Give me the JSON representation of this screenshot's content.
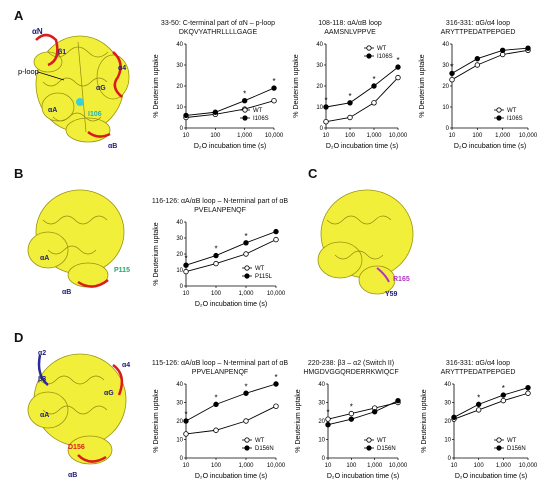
{
  "panels": {
    "A": "A",
    "B": "B",
    "C": "C",
    "D": "D"
  },
  "structures": {
    "A": {
      "labels": [
        "αN",
        "β1",
        "p-loop",
        "α4",
        "αG",
        "αA",
        "I106",
        "αB"
      ]
    },
    "B": {
      "labels": [
        "αA",
        "P115",
        "αB"
      ]
    },
    "C": {
      "labels": [
        "R165",
        "Y59"
      ]
    },
    "D": {
      "labels": [
        "α2",
        "β3",
        "α4",
        "αG",
        "αA",
        "D156",
        "αB"
      ]
    }
  },
  "axis_common": {
    "xlabel": "D₂O incubation time (s)",
    "ylabel": "% Deuterium uptake",
    "xticks": [
      "10",
      "100",
      "1,000",
      "10,000"
    ]
  },
  "colors": {
    "wt_fill": "#ffffff",
    "mutant_fill": "#000000",
    "stroke": "#000000"
  },
  "chart_data": [
    {
      "id": "A1",
      "type": "line",
      "title": "33-50: C-terminal part of αN – p-loop",
      "subtitle": "DKQVYATHRLLLLGAGE",
      "x": [
        10,
        100,
        1000,
        10000
      ],
      "xscale": "log",
      "ylim": [
        0,
        40
      ],
      "yticks": [
        0,
        10,
        20,
        30,
        40
      ],
      "legend": "bottom-right",
      "series": [
        {
          "name": "WT",
          "marker": "open",
          "values": [
            5,
            6.5,
            9,
            13
          ]
        },
        {
          "name": "I106S",
          "marker": "filled",
          "values": [
            6,
            7.5,
            13,
            19
          ]
        }
      ],
      "significance": [
        1000,
        10000
      ]
    },
    {
      "id": "A2",
      "type": "line",
      "title": "108-118: αA/αB loop",
      "subtitle": "AAMSNLVPPVE",
      "x": [
        10,
        100,
        1000,
        10000
      ],
      "xscale": "log",
      "ylim": [
        0,
        40
      ],
      "yticks": [
        0,
        10,
        20,
        30,
        40
      ],
      "legend": "top-right",
      "series": [
        {
          "name": "WT",
          "marker": "open",
          "values": [
            3,
            5,
            12,
            24
          ]
        },
        {
          "name": "I106S",
          "marker": "filled",
          "values": [
            10,
            12,
            20,
            29
          ]
        }
      ],
      "significance": [
        10,
        100,
        1000,
        10000
      ]
    },
    {
      "id": "A3",
      "type": "line",
      "title": "316-331: αG/α4 loop",
      "subtitle": "ARYTTPEDATPEPGED",
      "x": [
        10,
        100,
        1000,
        10000
      ],
      "xscale": "log",
      "ylim": [
        0,
        40
      ],
      "yticks": [
        0,
        10,
        20,
        30,
        40
      ],
      "legend": "bottom-right",
      "series": [
        {
          "name": "WT",
          "marker": "open",
          "values": [
            23,
            30,
            35,
            37
          ]
        },
        {
          "name": "I106S",
          "marker": "filled",
          "values": [
            26,
            33,
            37,
            38
          ]
        }
      ],
      "significance": [
        10
      ]
    },
    {
      "id": "B1",
      "type": "line",
      "title": "116-126: αA/αB loop – N-terminal part of αB",
      "subtitle": "PVELANPENQF",
      "x": [
        10,
        100,
        1000,
        10000
      ],
      "xscale": "log",
      "ylim": [
        0,
        40
      ],
      "yticks": [
        0,
        10,
        20,
        30,
        40
      ],
      "legend": "bottom-right",
      "series": [
        {
          "name": "WT",
          "marker": "open",
          "values": [
            9,
            14,
            20,
            29
          ]
        },
        {
          "name": "P115L",
          "marker": "filled",
          "values": [
            13,
            19,
            27,
            34
          ]
        }
      ],
      "significance": [
        10,
        100,
        1000
      ]
    },
    {
      "id": "D1",
      "type": "line",
      "title": "115-126: αA/αB loop – N-terminal part of αB",
      "subtitle": "PPVELANPENQF",
      "x": [
        10,
        100,
        1000,
        10000
      ],
      "xscale": "log",
      "ylim": [
        0,
        40
      ],
      "yticks": [
        0,
        10,
        20,
        30,
        40
      ],
      "legend": "bottom-right",
      "series": [
        {
          "name": "WT",
          "marker": "open",
          "values": [
            13,
            15,
            20,
            28
          ]
        },
        {
          "name": "D156N",
          "marker": "filled",
          "values": [
            20,
            29,
            35,
            40
          ]
        }
      ],
      "significance": [
        10,
        100,
        1000,
        10000
      ]
    },
    {
      "id": "D2",
      "type": "line",
      "title": "220-238: β3 – α2 (Switch II)",
      "subtitle": "HMGDVGGQRDERRKWIQCF",
      "x": [
        10,
        100,
        1000,
        10000
      ],
      "xscale": "log",
      "ylim": [
        0,
        40
      ],
      "yticks": [
        0,
        10,
        20,
        30,
        40
      ],
      "legend": "bottom-right",
      "series": [
        {
          "name": "WT",
          "marker": "open",
          "values": [
            21,
            24,
            27,
            30
          ]
        },
        {
          "name": "D156N",
          "marker": "filled",
          "values": [
            18,
            21,
            25,
            31
          ]
        }
      ],
      "significance": [
        10,
        100
      ]
    },
    {
      "id": "D3",
      "type": "line",
      "title": "316-331: αG/α4 loop",
      "subtitle": "ARYTTPEDATPEPGED",
      "x": [
        10,
        100,
        1000,
        10000
      ],
      "xscale": "log",
      "ylim": [
        0,
        40
      ],
      "yticks": [
        0,
        10,
        20,
        30,
        40
      ],
      "legend": "bottom-right",
      "series": [
        {
          "name": "WT",
          "marker": "open",
          "values": [
            21,
            26,
            31,
            35
          ]
        },
        {
          "name": "D156N",
          "marker": "filled",
          "values": [
            22,
            29,
            34,
            38
          ]
        }
      ],
      "significance": [
        100,
        1000
      ]
    }
  ]
}
